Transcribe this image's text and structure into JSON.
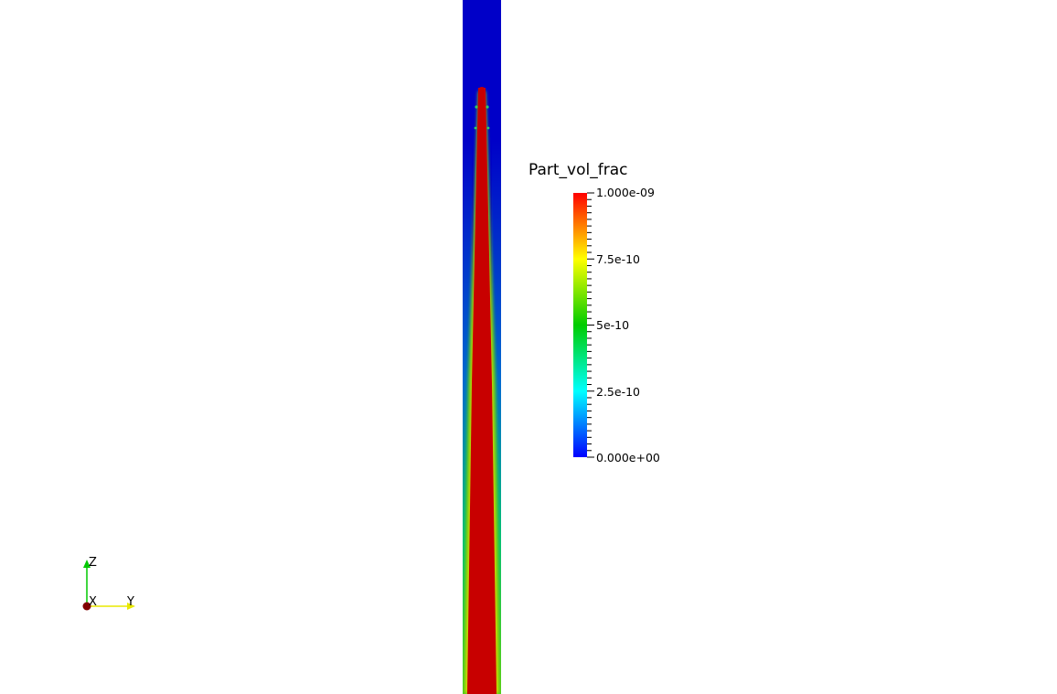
{
  "scalar_bar": {
    "title": "Part_vol_frac",
    "labels": [
      "1.000e-09",
      "7.5e-10",
      "5e-10",
      "2.5e-10",
      "0.000e+00"
    ],
    "colors": [
      "#ff0000",
      "#ffff00",
      "#00cc00",
      "#00ffff",
      "#0000ff"
    ],
    "range": [
      0.0,
      1e-09
    ]
  },
  "axes": {
    "x_label": "X",
    "y_label": "Y",
    "z_label": "Z"
  },
  "field": {
    "background_color": "#0000c8",
    "plume_color": "#c80000"
  }
}
